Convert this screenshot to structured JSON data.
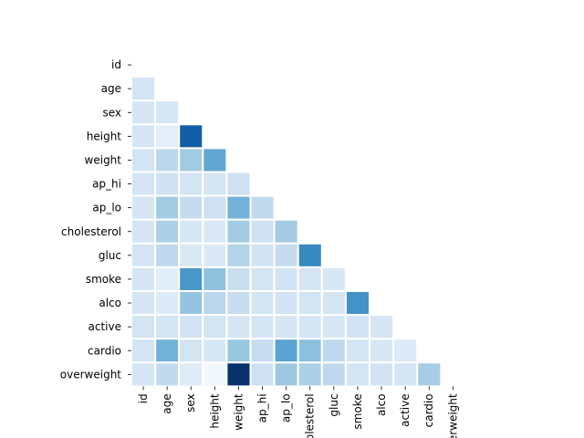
{
  "chart_data": {
    "type": "heatmap",
    "mask": "upper-triangle-and-diagonal",
    "colormap": "Blues",
    "value_range": [
      0,
      1
    ],
    "colorbar": false,
    "cell_border_color": "#ffffff",
    "rows": [
      "id",
      "age",
      "sex",
      "height",
      "weight",
      "ap_hi",
      "ap_lo",
      "cholesterol",
      "gluc",
      "smoke",
      "alco",
      "active",
      "cardio",
      "overweight"
    ],
    "columns": [
      "id",
      "age",
      "sex",
      "height",
      "weight",
      "ap_hi",
      "ap_lo",
      "cholesterol",
      "gluc",
      "smoke",
      "alco",
      "active",
      "cardio",
      "overweight"
    ],
    "x_tick_labels_shown": [
      "id",
      "age",
      "sex",
      "height",
      "weight",
      "ap_hi",
      "ap_lo",
      "cholesterol",
      "gluc",
      "smoke",
      "alco",
      "active",
      "cardio",
      "overweight"
    ],
    "values": [
      [],
      [
        0.18
      ],
      [
        0.17,
        0.16
      ],
      [
        0.17,
        0.1,
        0.82
      ],
      [
        0.18,
        0.28,
        0.37,
        0.53
      ],
      [
        0.17,
        0.2,
        0.18,
        0.17,
        0.21
      ],
      [
        0.17,
        0.36,
        0.25,
        0.21,
        0.48,
        0.26
      ],
      [
        0.17,
        0.33,
        0.16,
        0.14,
        0.36,
        0.21,
        0.36
      ],
      [
        0.17,
        0.27,
        0.15,
        0.14,
        0.31,
        0.19,
        0.25,
        0.66
      ],
      [
        0.17,
        0.11,
        0.6,
        0.41,
        0.23,
        0.18,
        0.19,
        0.17,
        0.16
      ],
      [
        0.17,
        0.13,
        0.4,
        0.28,
        0.24,
        0.18,
        0.19,
        0.18,
        0.17,
        0.62
      ],
      [
        0.18,
        0.18,
        0.19,
        0.18,
        0.17,
        0.17,
        0.17,
        0.17,
        0.16,
        0.19,
        0.17
      ],
      [
        0.18,
        0.48,
        0.18,
        0.16,
        0.39,
        0.24,
        0.55,
        0.42,
        0.27,
        0.18,
        0.16,
        0.13
      ],
      [
        0.17,
        0.26,
        0.12,
        0.03,
        1.0,
        0.21,
        0.38,
        0.33,
        0.27,
        0.18,
        0.19,
        0.17,
        0.35
      ]
    ]
  }
}
